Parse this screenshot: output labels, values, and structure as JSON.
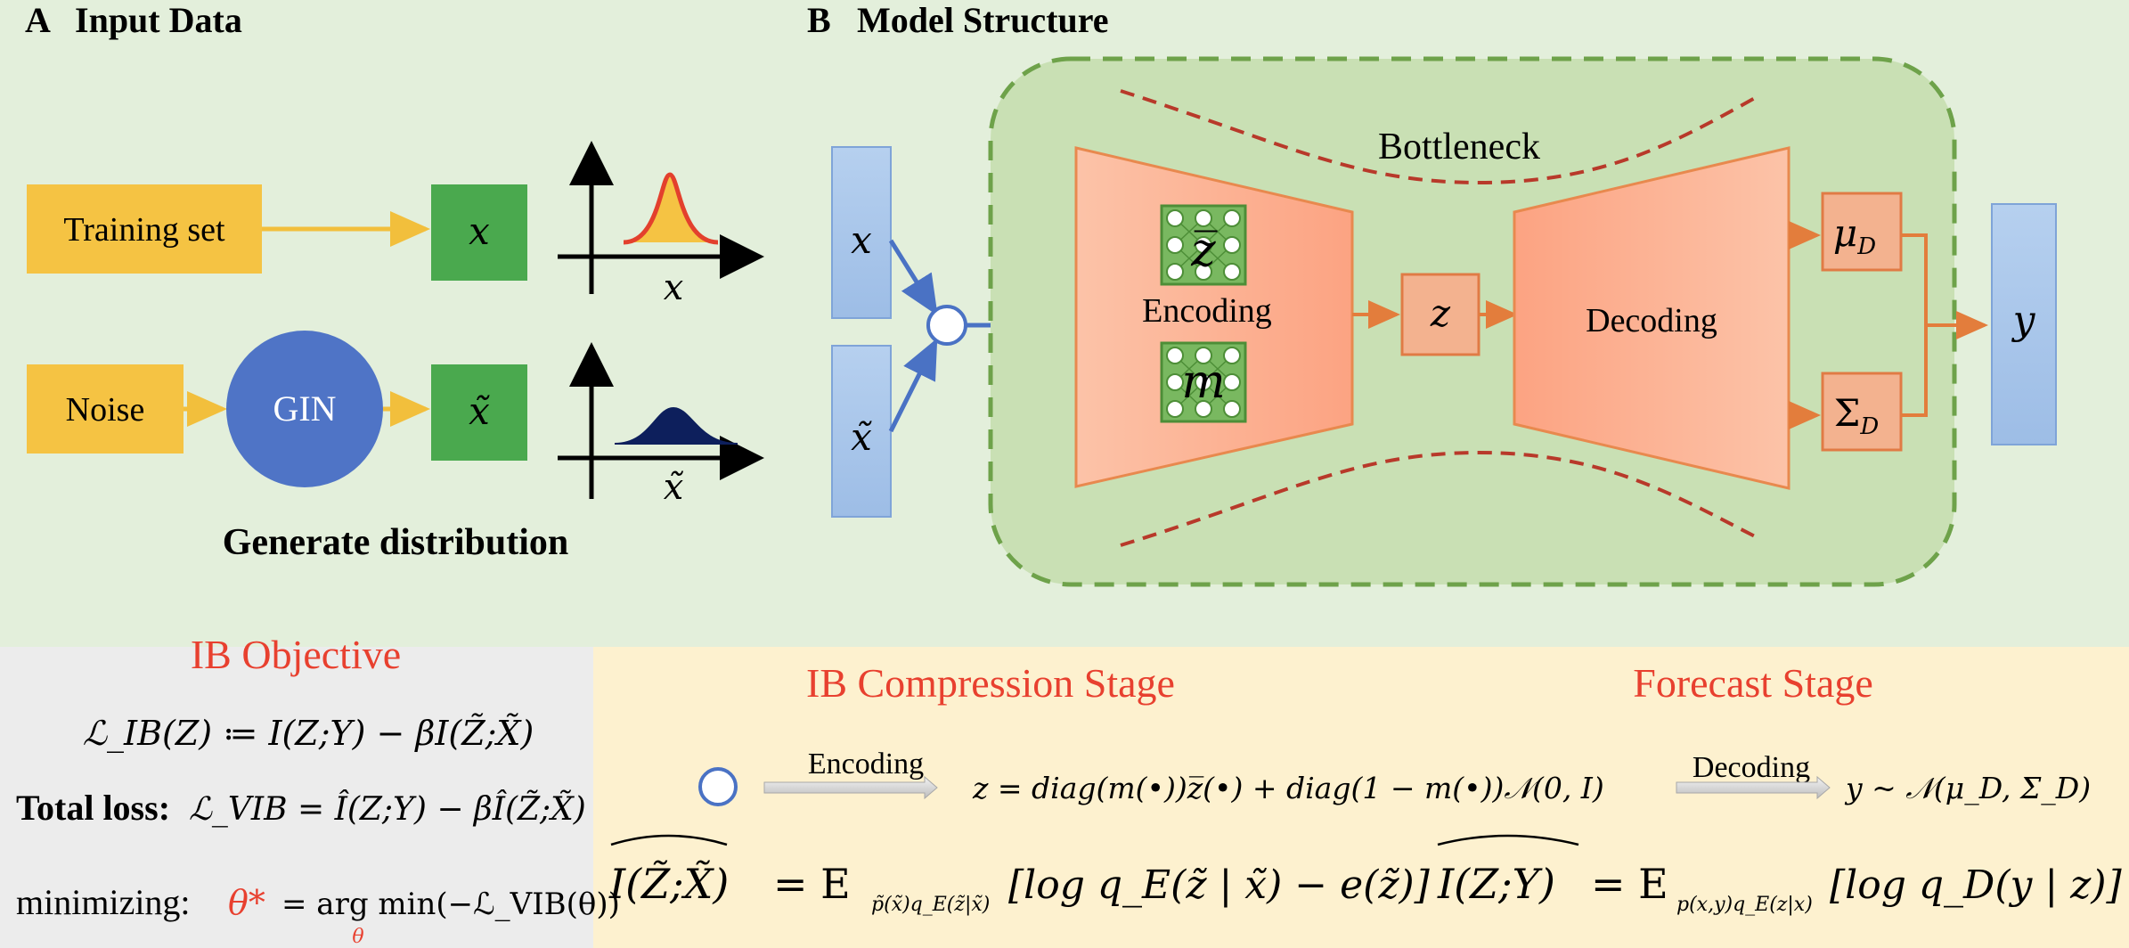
{
  "panel_a": {
    "label": "A",
    "title": "Input Data",
    "training_set": "Training set",
    "noise": "Noise",
    "gin": "GIN",
    "x_box": "x",
    "x_tilde_box": "x̃",
    "axis_x": "x",
    "axis_x_tilde": "x̃",
    "caption": "Generate distribution"
  },
  "panel_b": {
    "label": "B",
    "title": "Model Structure",
    "input_x": "x",
    "input_x_tilde": "x̃",
    "bottleneck": "Bottleneck",
    "encoding": "Encoding",
    "z_bar": "z̅",
    "m": "m",
    "z": "z",
    "decoding": "Decoding",
    "mu": "μ",
    "mu_sub": "D",
    "sigma": "Σ",
    "sigma_sub": "D",
    "output_y": "y"
  },
  "objective": {
    "title": "IB Objective",
    "ib_formula": "ℒ_IB(Z) ≔ I(Z;Y) − βI(Z̃;X̃)",
    "total_loss_label": "Total loss:",
    "total_loss_formula": "ℒ_VIB = Î(Z;Y) − βÎ(Z̃;X̃)",
    "minimizing_label": "minimizing:",
    "theta_star": "θ*",
    "minimizing_formula": "= arg min(−ℒ_VIB(θ))",
    "theta_sub": "θ"
  },
  "stages": {
    "compression_title": "IB Compression Stage",
    "forecast_title": "Forecast Stage",
    "encoding_arrow": "Encoding",
    "decoding_arrow": "Decoding",
    "z_formula": "z = diag(m(•))z̅(•) + diag(1 − m(•))𝒩(0, I)",
    "y_formula": "y ~ 𝒩(μ_D, Σ_D)",
    "mi_xz_lhs": "I(Z̃;X̃)",
    "mi_xz_rhs": "= E",
    "mi_xz_sub": "p̃(x̃)q_E(z̃|x̃)",
    "mi_xz_body": "[log q_E(z̃ | x̃) − e(z̃)]",
    "mi_zy_lhs": "I(Z;Y)",
    "mi_zy_rhs": "= E",
    "mi_zy_sub": "p(x,y)q_E(z|x)",
    "mi_zy_body": "[log q_D(y | z)]"
  },
  "colors": {
    "top_bg": "#e3efdb",
    "left_bottom_bg": "#ececec",
    "right_bottom_bg": "#fdf1cf",
    "yellow_box": "#f5c343",
    "green_box": "#4aa94e",
    "gin_circle": "#4f74c6",
    "blue_input": "#a9c6ea",
    "model_bg": "#c9e0b4",
    "model_border": "#6ea24a",
    "trapezoid": "#fcb797",
    "salmon_box": "#f3b28f",
    "red_title": "#e8402f",
    "arrow_orange": "#e37d3c",
    "arrow_yellow": "#f2bf3c",
    "arrow_blue": "#4a72c4",
    "dash_red": "#c0392b"
  }
}
